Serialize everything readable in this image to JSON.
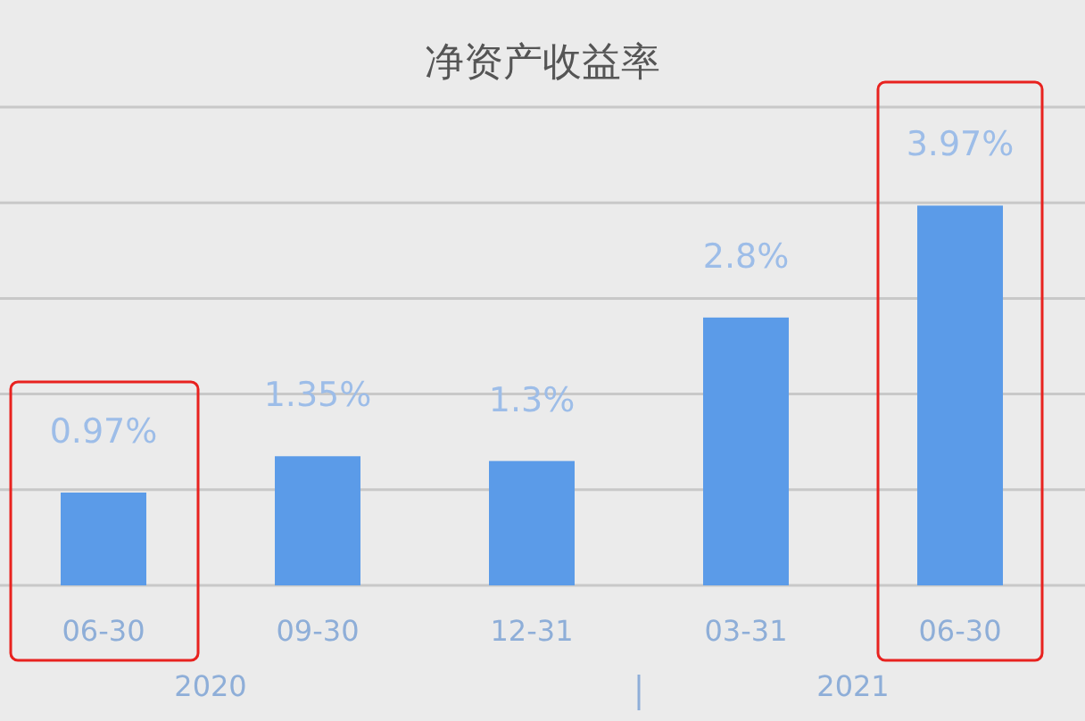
{
  "chart_data": {
    "type": "bar",
    "title": "净资产收益率",
    "categories": [
      "06-30",
      "09-30",
      "12-31",
      "03-31",
      "06-30"
    ],
    "values": [
      0.97,
      1.35,
      1.3,
      2.8,
      3.97
    ],
    "value_labels": [
      "0.97%",
      "1.35%",
      "1.3%",
      "2.8%",
      "3.97%"
    ],
    "color": "#5b9be8",
    "ylim": [
      0,
      5
    ],
    "yticks": [
      {
        "value": 0,
        "label": null
      },
      {
        "value": 1,
        "label": null
      },
      {
        "value": 2,
        "label": null
      },
      {
        "value": 3,
        "label": null
      },
      {
        "value": 4,
        "label": null
      },
      {
        "value": 5,
        "label": null
      }
    ],
    "grid": "y",
    "annotations": [
      "2020",
      "2021"
    ]
  }
}
